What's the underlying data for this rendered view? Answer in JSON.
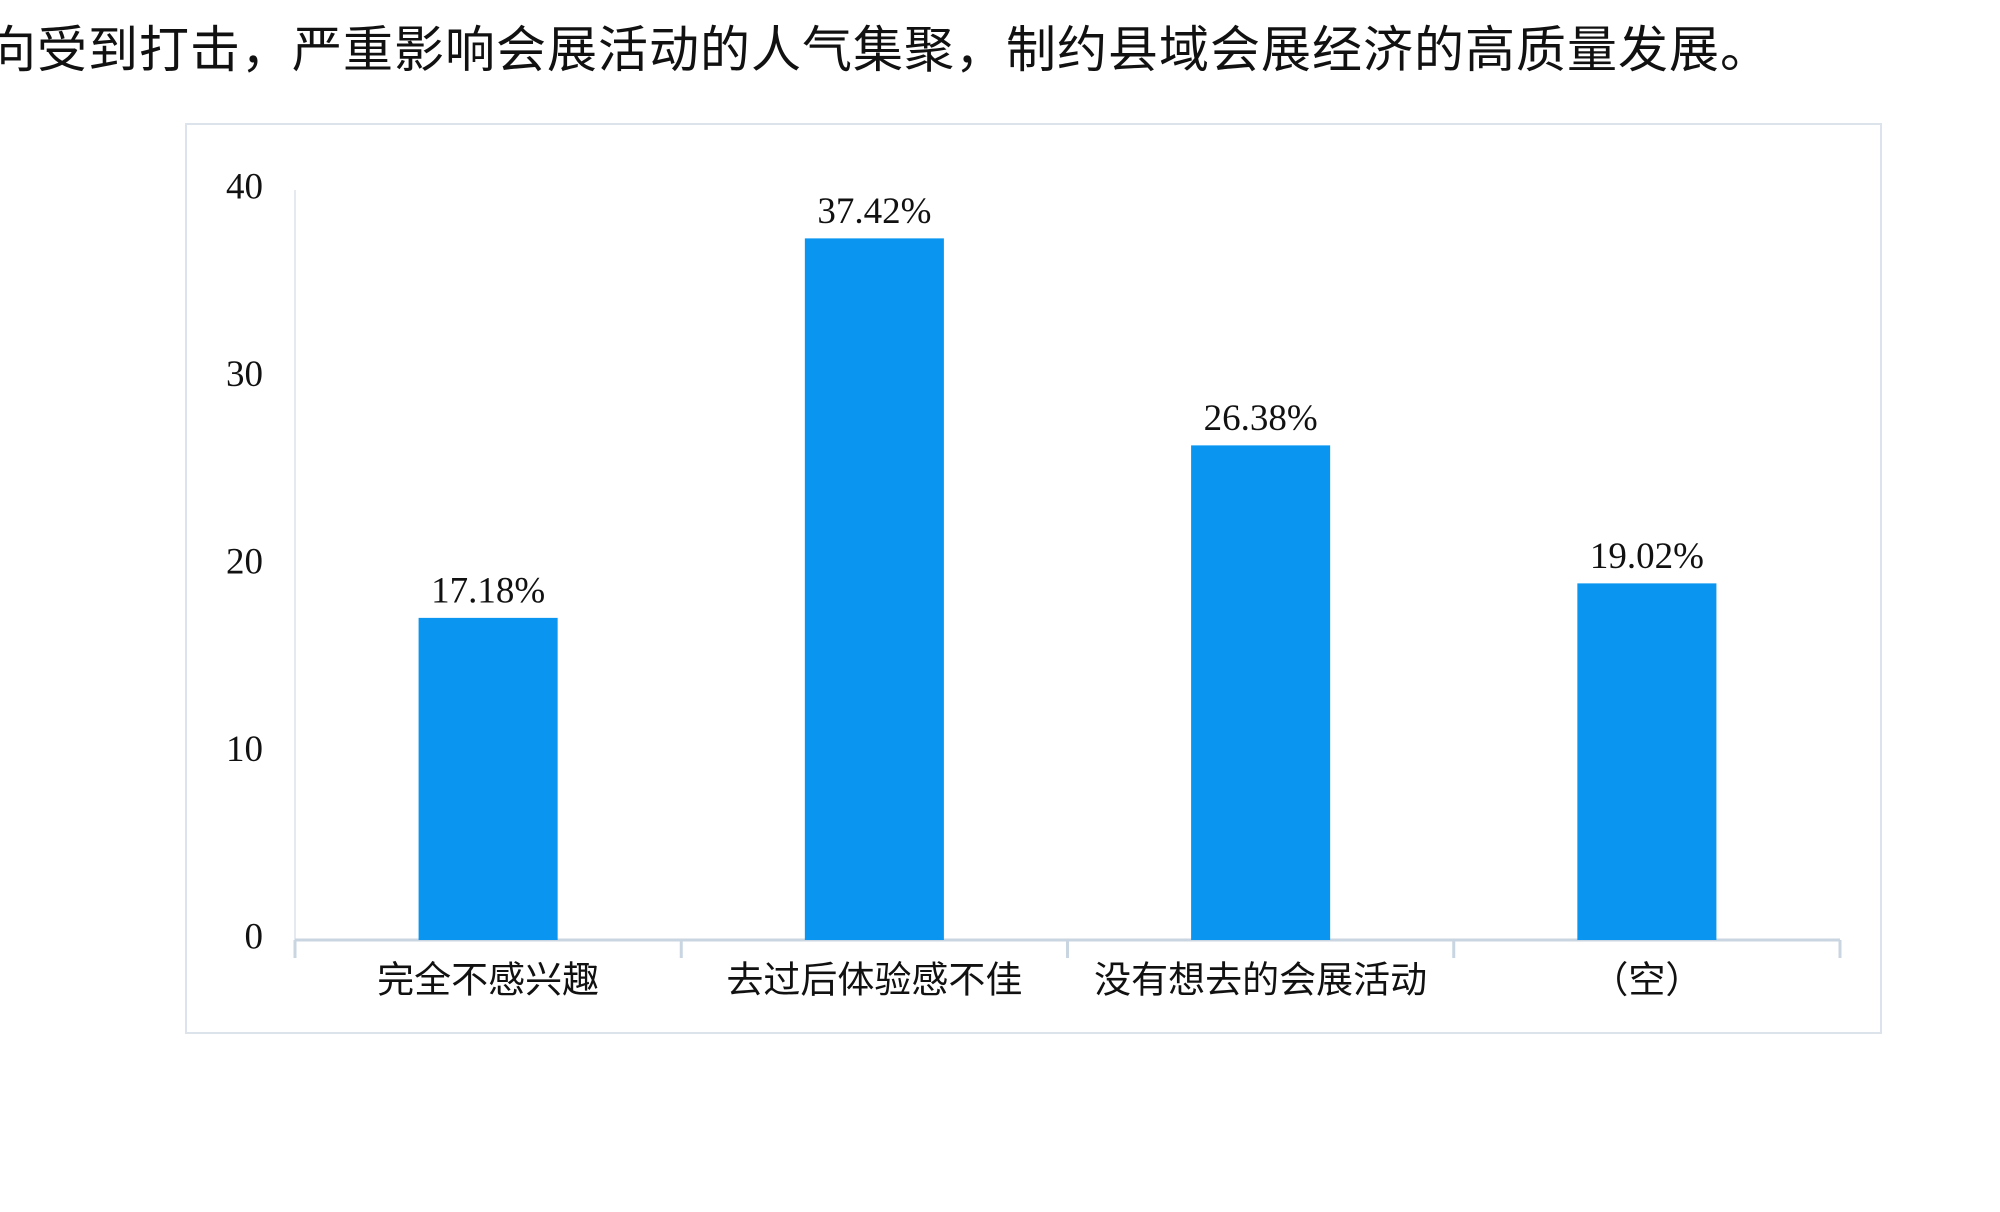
{
  "text": "向受到打击，严重影响会展活动的人气集聚，制约县域会展经济的高质量发展。",
  "chart_data": {
    "type": "bar",
    "categories": [
      "完全不感兴趣",
      "去过后体验感不佳",
      "没有想去的会展活动",
      "（空）"
    ],
    "values": [
      17.18,
      37.42,
      26.38,
      19.02
    ],
    "value_labels": [
      "17.18%",
      "37.42%",
      "26.38%",
      "19.02%"
    ],
    "color": "#0a96f0",
    "ylim": [
      0,
      40
    ],
    "yticks": [
      0,
      10,
      20,
      30,
      40
    ],
    "grid": false
  }
}
